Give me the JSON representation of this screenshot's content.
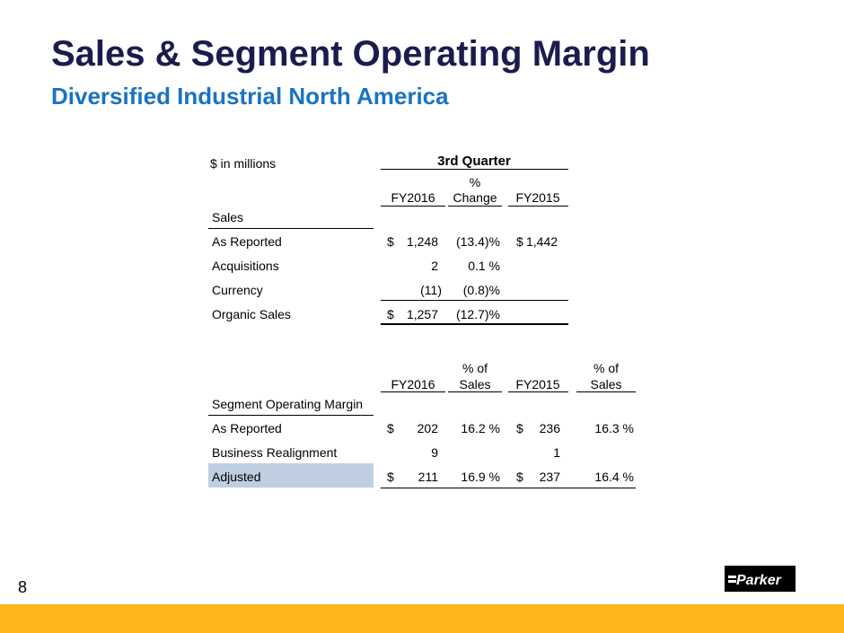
{
  "title": "Sales & Segment Operating Margin",
  "subtitle": "Diversified Industrial North America",
  "units_label": "$  in millions",
  "sales_table": {
    "period_header": "3rd  Quarter",
    "col_fy2016": "FY2016",
    "col_pct_change_line1": "%",
    "col_pct_change_line2": "Change",
    "col_fy2015": "FY2015",
    "section_label": "Sales",
    "rows": [
      {
        "label": "As Reported",
        "cur_sym": "$",
        "fy2016": "1,248",
        "pct": "(13.4)%",
        "fy2015_sym": "$",
        "fy2015": "1,442"
      },
      {
        "label": "Acquisitions",
        "cur_sym": "",
        "fy2016": "2",
        "pct": "0.1 %",
        "fy2015_sym": "",
        "fy2015": ""
      },
      {
        "label": "Currency",
        "cur_sym": "",
        "fy2016": "(11)",
        "pct": "(0.8)%",
        "fy2015_sym": "",
        "fy2015": ""
      },
      {
        "label": "Organic Sales",
        "cur_sym": "$",
        "fy2016": "1,257",
        "pct": "(12.7)%",
        "fy2015_sym": "",
        "fy2015": ""
      }
    ]
  },
  "margin_table": {
    "col_fy2016": "FY2016",
    "col_pct_sales_a_line1": "% of",
    "col_pct_sales_a_line2": "Sales",
    "col_fy2015": "FY2015",
    "col_pct_sales_b_line1": "% of",
    "col_pct_sales_b_line2": "Sales",
    "section_label": "Segment Operating Margin",
    "rows": [
      {
        "label": "As Reported",
        "sym16": "$",
        "fy2016": "202",
        "pct16": "16.2 %",
        "sym15": "$",
        "fy2015": "236",
        "pct15": "16.3 %"
      },
      {
        "label": "Business Realignment",
        "sym16": "",
        "fy2016": "9",
        "pct16": "",
        "sym15": "",
        "fy2015": "1",
        "pct15": ""
      },
      {
        "label": "Adjusted",
        "sym16": "$",
        "fy2016": "211",
        "pct16": "16.9 %",
        "sym15": "$",
        "fy2015": "237",
        "pct15": "16.4 %"
      }
    ]
  },
  "page_number": "8",
  "logo_text": "Parker",
  "colors": {
    "title": "#1b1c4e",
    "subtitle": "#1a73c1",
    "footer_bar": "#fdb71a",
    "adjusted_highlight": "#c0cee2"
  }
}
